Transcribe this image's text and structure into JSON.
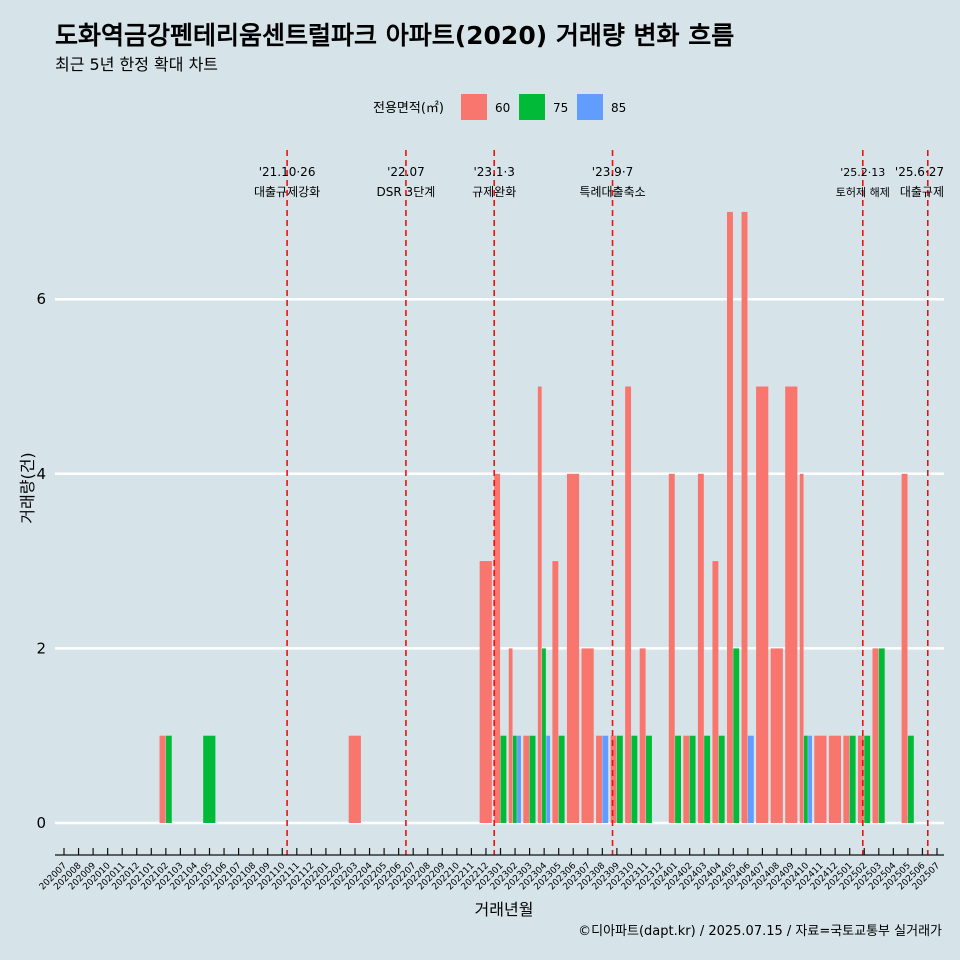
{
  "chart_data": {
    "type": "bar",
    "title": "도화역금강펜테리움센트럴파크 아파트(2020) 거래량 변화 흐름",
    "subtitle": "최근 5년 한정 확대 차트",
    "xlabel": "거래년월",
    "ylabel": "거래량(건)",
    "caption": "©디아파트(dapt.kr) / 2025.07.15 / 자료=국토교통부 실거래가",
    "legend_title": "전용면적(㎡)",
    "legend_position": "top",
    "grid": true,
    "ylim": [
      0,
      7
    ],
    "yticks": [
      0,
      2,
      4,
      6
    ],
    "categories": [
      "202007",
      "202008",
      "202009",
      "202010",
      "202011",
      "202012",
      "202101",
      "202102",
      "202103",
      "202104",
      "202105",
      "202106",
      "202107",
      "202108",
      "202109",
      "202110",
      "202111",
      "202112",
      "202201",
      "202202",
      "202203",
      "202204",
      "202205",
      "202206",
      "202207",
      "202208",
      "202209",
      "202210",
      "202211",
      "202212",
      "202301",
      "202302",
      "202303",
      "202304",
      "202305",
      "202306",
      "202307",
      "202308",
      "202309",
      "202310",
      "202311",
      "202312",
      "202401",
      "202402",
      "202403",
      "202404",
      "202405",
      "202406",
      "202407",
      "202408",
      "202409",
      "202410",
      "202411",
      "202412",
      "202501",
      "202502",
      "202503",
      "202504",
      "202505",
      "202506",
      "202507"
    ],
    "series": [
      {
        "name": "60",
        "color": "#f8766d",
        "values": [
          0,
          0,
          0,
          0,
          0,
          0,
          0,
          1,
          0,
          0,
          0,
          0,
          0,
          0,
          0,
          0,
          0,
          0,
          0,
          0,
          1,
          0,
          0,
          0,
          0,
          0,
          0,
          0,
          0,
          3,
          4,
          2,
          1,
          5,
          3,
          4,
          2,
          1,
          1,
          5,
          2,
          0,
          4,
          1,
          4,
          3,
          7,
          7,
          5,
          2,
          5,
          4,
          1,
          1,
          1,
          1,
          2,
          0,
          4,
          0,
          0
        ]
      },
      {
        "name": "75",
        "color": "#00ba38",
        "values": [
          0,
          0,
          0,
          0,
          0,
          0,
          0,
          1,
          0,
          0,
          1,
          0,
          0,
          0,
          0,
          0,
          0,
          0,
          0,
          0,
          0,
          0,
          0,
          0,
          0,
          0,
          0,
          0,
          0,
          0,
          1,
          1,
          1,
          2,
          1,
          0,
          0,
          0,
          1,
          1,
          1,
          0,
          1,
          1,
          1,
          1,
          2,
          0,
          0,
          0,
          0,
          1,
          0,
          0,
          1,
          1,
          2,
          0,
          1,
          0,
          0
        ]
      },
      {
        "name": "85",
        "color": "#619cff",
        "values": [
          0,
          0,
          0,
          0,
          0,
          0,
          0,
          0,
          0,
          0,
          0,
          0,
          0,
          0,
          0,
          0,
          0,
          0,
          0,
          0,
          0,
          0,
          0,
          0,
          0,
          0,
          0,
          0,
          0,
          0,
          0,
          1,
          0,
          1,
          0,
          0,
          0,
          1,
          0,
          0,
          0,
          0,
          0,
          0,
          0,
          0,
          0,
          1,
          0,
          0,
          0,
          1,
          0,
          0,
          0,
          0,
          0,
          0,
          0,
          0,
          0
        ]
      }
    ],
    "events": [
      {
        "date": "2021-10-26",
        "month": "202110",
        "day": 26,
        "label1": "'21.10·26",
        "label2": "대출규제강화"
      },
      {
        "date": "2022-07",
        "month": "202207",
        "day": 1,
        "label1": "'22.07",
        "label2": "DSR 3단계"
      },
      {
        "date": "2023-01-03",
        "month": "202301",
        "day": 3,
        "label1": "'23.1·3",
        "label2": "규제완화"
      },
      {
        "date": "2023-09-07",
        "month": "202309",
        "day": 7,
        "label1": "'23.9·7",
        "label2": "특례대출축소"
      },
      {
        "date": "2025-02-13",
        "month": "202502",
        "day": 13,
        "label1": "'25.2·13",
        "label2": "토허제 해제"
      },
      {
        "date": "2025-06-27",
        "month": "202506",
        "day": 27,
        "label1": "'25.6·27",
        "label2": "대출규제"
      }
    ],
    "colors": {
      "background": "#d6e4ea",
      "gridline": "#ffffff",
      "event_line": "#ee1111"
    }
  }
}
